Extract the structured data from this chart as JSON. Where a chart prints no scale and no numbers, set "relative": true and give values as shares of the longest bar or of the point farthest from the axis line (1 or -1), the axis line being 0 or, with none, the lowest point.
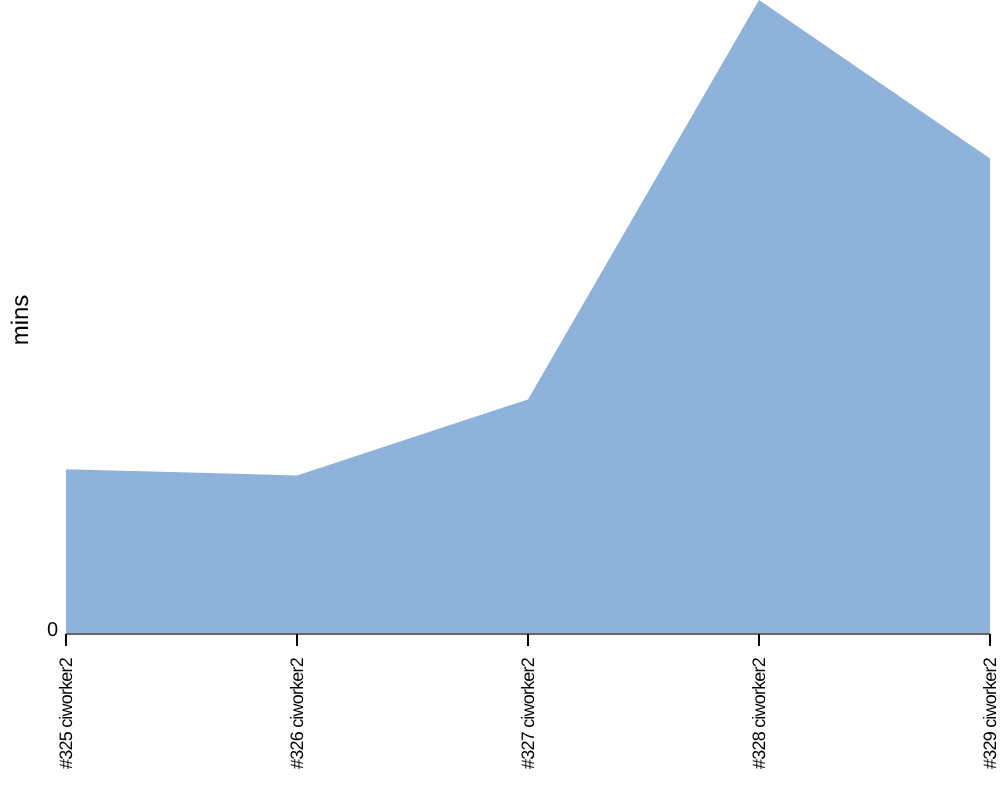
{
  "chart_data": {
    "type": "area",
    "ylabel": "mins",
    "relative": true,
    "categories": [
      "#325 ciworker2",
      "#326 ciworker2",
      "#327 ciworker2",
      "#328 ciworker2",
      "#329 ciworker2"
    ],
    "series": [
      {
        "color": "#8fb2da",
        "values": [
          0.26,
          0.25,
          0.37,
          1,
          0.75
        ]
      }
    ],
    "annotations": [
      "0"
    ]
  }
}
